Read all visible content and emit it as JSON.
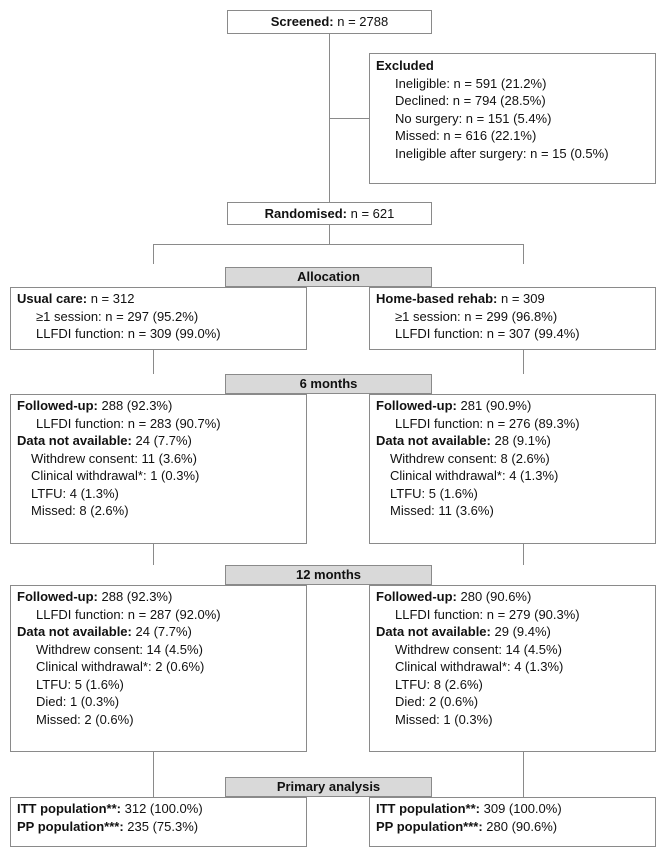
{
  "screened": {
    "label": "Screened:",
    "value": "n = 2788"
  },
  "excluded": {
    "title": "Excluded",
    "items": [
      "Ineligible: n = 591 (21.2%)",
      "Declined: n = 794 (28.5%)",
      "No surgery: n = 151 (5.4%)",
      "Missed: n = 616 (22.1%)",
      "Ineligible after surgery: n = 15 (0.5%)"
    ]
  },
  "randomised": {
    "label": "Randomised:",
    "value": "n = 621"
  },
  "stages": {
    "allocation": "Allocation",
    "six_months": "6 months",
    "twelve_months": "12 months",
    "primary": "Primary analysis"
  },
  "usual_care": {
    "allocation": {
      "name": "Usual care:",
      "n": "n = 312",
      "session": "≥1 session: n = 297 (95.2%)",
      "llfdi": "LLFDI function: n = 309 (99.0%)"
    },
    "m6": {
      "followed_label": "Followed-up:",
      "followed_value": "288 (92.3%)",
      "llfdi": "LLFDI function: n = 283 (90.7%)",
      "na_label": "Data not available:",
      "na_value": "24 (7.7%)",
      "items": [
        "Withdrew consent: 11 (3.6%)",
        "Clinical withdrawal*: 1 (0.3%)",
        "LTFU: 4 (1.3%)",
        "Missed: 8 (2.6%)"
      ]
    },
    "m12": {
      "followed_label": "Followed-up:",
      "followed_value": "288 (92.3%)",
      "llfdi": "LLFDI function: n = 287 (92.0%)",
      "na_label": "Data not available:",
      "na_value": "24 (7.7%)",
      "items": [
        "Withdrew consent: 14 (4.5%)",
        "Clinical withdrawal*: 2 (0.6%)",
        "LTFU: 5 (1.6%)",
        "Died: 1 (0.3%)",
        "Missed: 2 (0.6%)"
      ]
    },
    "primary": {
      "itt_label": "ITT population**:",
      "itt_value": "312 (100.0%)",
      "pp_label": "PP population***:",
      "pp_value": "235 (75.3%)"
    }
  },
  "home_rehab": {
    "allocation": {
      "name": "Home-based rehab:",
      "n": "n = 309",
      "session": "≥1 session: n = 299 (96.8%)",
      "llfdi": "LLFDI function: n = 307 (99.4%)"
    },
    "m6": {
      "followed_label": "Followed-up:",
      "followed_value": "281 (90.9%)",
      "llfdi": "LLFDI function: n = 276 (89.3%)",
      "na_label": "Data not available:",
      "na_value": "28 (9.1%)",
      "items": [
        "Withdrew consent: 8 (2.6%)",
        "Clinical withdrawal*: 4 (1.3%)",
        "LTFU: 5 (1.6%)",
        "Missed: 11 (3.6%)"
      ]
    },
    "m12": {
      "followed_label": "Followed-up:",
      "followed_value": "280 (90.6%)",
      "llfdi": "LLFDI function: n = 279 (90.3%)",
      "na_label": "Data not available:",
      "na_value": "29 (9.4%)",
      "items": [
        "Withdrew consent: 14 (4.5%)",
        "Clinical withdrawal*: 4 (1.3%)",
        "LTFU: 8 (2.6%)",
        "Died: 2 (0.6%)",
        "Missed: 1 (0.3%)"
      ]
    },
    "primary": {
      "itt_label": "ITT population**:",
      "itt_value": "309 (100.0%)",
      "pp_label": "PP population***:",
      "pp_value": "280 (90.6%)"
    }
  }
}
